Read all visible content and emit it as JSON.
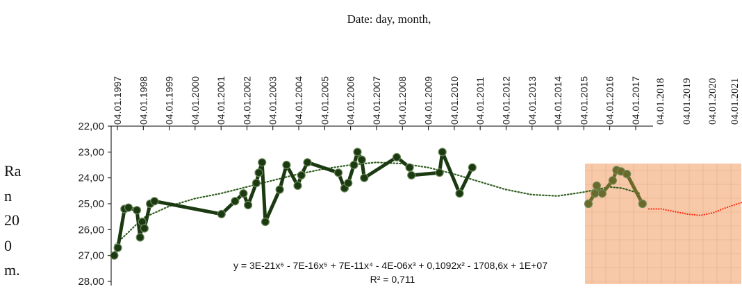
{
  "chart_data": {
    "type": "line",
    "title": "Date:  day,  month,",
    "ylabel_lines": [
      "Ra",
      "n",
      "20",
      "0",
      "m."
    ],
    "y_axis": {
      "reversed": true,
      "ylim": [
        22.0,
        28.0
      ],
      "ticks": [
        "22,00",
        "23,00",
        "24,00",
        "25,00",
        "26,00",
        "27,00",
        "28,00"
      ],
      "tick_values": [
        22,
        23,
        24,
        25,
        26,
        27,
        28
      ]
    },
    "x_axis": {
      "type": "date",
      "position": "top",
      "ticks": [
        "04.01.1997",
        "04.01.1998",
        "04.01.1999",
        "04.01.2000",
        "04.01.2001",
        "04.01.2002",
        "04.01.2003",
        "04.01.2004",
        "04.01.2005",
        "04.01.2006",
        "04.01.2007",
        "04.01.2008",
        "04.01.2009",
        "04.01.2010",
        "04.01.2011",
        "04.01.2012",
        "04.01.2013",
        "04.01.2014",
        "04.01.2015",
        "04.01.2016",
        "04.01.2017"
      ],
      "extra_ticks": [
        "04.01.2018",
        "04.01.2019",
        "04.01.2020",
        "04.01.2021"
      ]
    },
    "series": [
      {
        "style": "dark-green line with markers",
        "color": "#1b3a12",
        "points": [
          [
            "1996-11-20",
            27.0
          ],
          [
            "1997-01-10",
            26.7
          ],
          [
            "1997-04-15",
            25.2
          ],
          [
            "1997-06-10",
            25.15
          ],
          [
            "1997-10-05",
            25.25
          ],
          [
            "1997-11-20",
            26.3
          ],
          [
            "1997-12-20",
            25.7
          ],
          [
            "1998-01-20",
            25.95
          ],
          [
            "1998-04-10",
            25.0
          ],
          [
            "1998-06-10",
            24.9
          ],
          [
            "2001-01-10",
            25.4
          ],
          [
            "2001-07-20",
            24.9
          ],
          [
            "2001-11-15",
            24.6
          ],
          [
            "2002-01-20",
            25.05
          ],
          [
            "2002-05-15",
            24.2
          ],
          [
            "2002-06-20",
            23.8
          ],
          [
            "2002-08-05",
            23.4
          ],
          [
            "2002-09-20",
            25.7
          ],
          [
            "2003-04-10",
            24.45
          ],
          [
            "2003-07-15",
            23.5
          ],
          [
            "2003-12-20",
            24.3
          ],
          [
            "2004-02-10",
            23.9
          ],
          [
            "2004-05-05",
            23.4
          ],
          [
            "2005-07-15",
            23.8
          ],
          [
            "2005-10-10",
            24.4
          ],
          [
            "2005-12-01",
            24.2
          ],
          [
            "2006-02-20",
            23.5
          ],
          [
            "2006-04-10",
            23.0
          ],
          [
            "2006-06-10",
            23.3
          ],
          [
            "2006-07-15",
            24.0
          ],
          [
            "2007-10-15",
            23.2
          ],
          [
            "2008-04-15",
            23.6
          ],
          [
            "2008-05-10",
            23.9
          ],
          [
            "2009-06-10",
            23.8
          ],
          [
            "2009-07-20",
            23.0
          ],
          [
            "2010-03-20",
            24.6
          ],
          [
            "2010-09-15",
            23.6
          ]
        ]
      },
      {
        "style": "olive line with markers (inset)",
        "color": "#6b6a2a",
        "points": [
          [
            "2015-03-10",
            25.0
          ],
          [
            "2015-06-10",
            24.6
          ],
          [
            "2015-07-05",
            24.3
          ],
          [
            "2015-09-20",
            24.6
          ],
          [
            "2016-02-15",
            24.1
          ],
          [
            "2016-04-10",
            23.7
          ],
          [
            "2016-06-10",
            23.75
          ],
          [
            "2016-09-01",
            23.85
          ],
          [
            "2017-04-10",
            25.0
          ]
        ]
      },
      {
        "style": "red dotted poly trend (inset)",
        "color": "#ff2a10",
        "points": [
          [
            "2017-07-01",
            25.2
          ],
          [
            "2018-01-01",
            25.2
          ],
          [
            "2018-07-01",
            25.3
          ],
          [
            "2019-01-01",
            25.4
          ],
          [
            "2019-07-01",
            25.45
          ],
          [
            "2020-01-01",
            25.35
          ],
          [
            "2020-07-01",
            25.15
          ],
          [
            "2021-04-01",
            24.9
          ]
        ]
      }
    ],
    "trendline": {
      "type": "polynomial-6",
      "style": "dotted green",
      "points": [
        [
          "1996-12-01",
          26.6
        ],
        [
          "1998-01-01",
          25.55
        ],
        [
          "1999-01-01",
          25.1
        ],
        [
          "2000-01-01",
          24.8
        ],
        [
          "2001-01-01",
          24.6
        ],
        [
          "2002-01-01",
          24.35
        ],
        [
          "2003-01-01",
          24.1
        ],
        [
          "2004-01-01",
          23.85
        ],
        [
          "2005-01-01",
          23.65
        ],
        [
          "2006-01-01",
          23.5
        ],
        [
          "2007-01-01",
          23.4
        ],
        [
          "2008-01-01",
          23.45
        ],
        [
          "2009-01-01",
          23.6
        ],
        [
          "2010-01-01",
          23.85
        ],
        [
          "2011-01-01",
          24.15
        ],
        [
          "2012-01-01",
          24.45
        ],
        [
          "2013-01-01",
          24.65
        ],
        [
          "2014-01-01",
          24.7
        ],
        [
          "2015-01-01",
          24.55
        ],
        [
          "2016-01-01",
          24.35
        ],
        [
          "2016-07-01",
          24.4
        ],
        [
          "2017-03-01",
          24.6
        ]
      ]
    },
    "equation": "y = 3E-21x⁶ - 7E-16x⁵ + 7E-11x⁴ - 4E-06x³ + 0,1092x² - 1708,6x + 1E+07",
    "r_squared": "R² = 0,711",
    "inset_color": "#f7c9a8",
    "grid": false,
    "legend": "none"
  }
}
